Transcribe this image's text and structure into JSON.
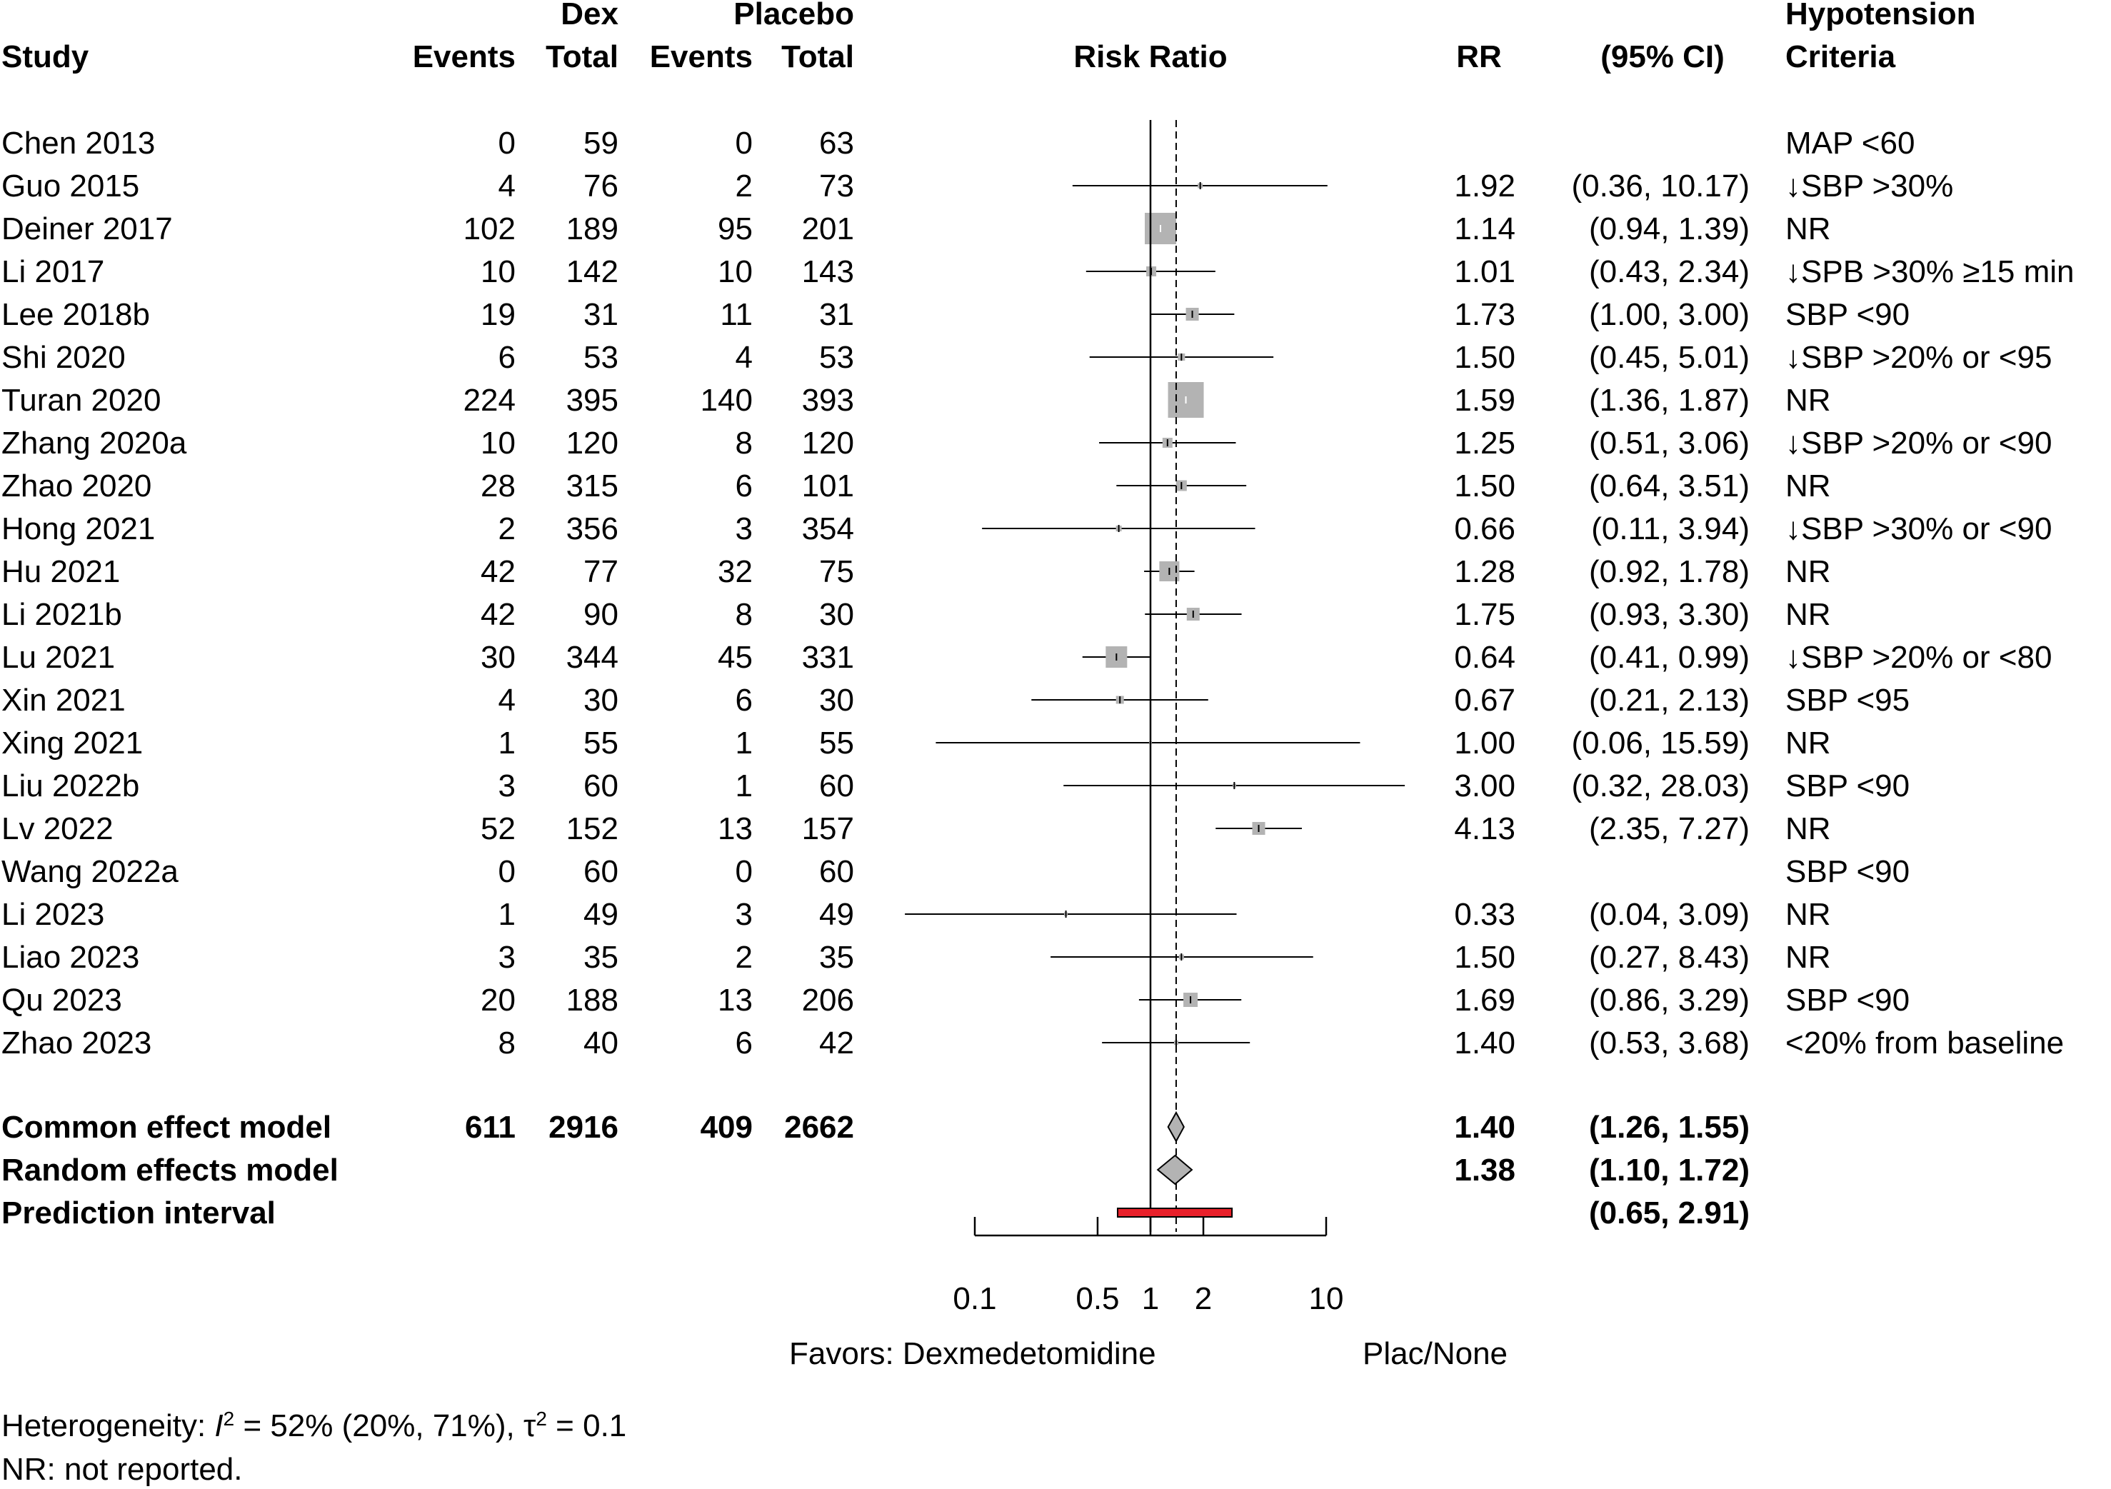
{
  "chart_data": {
    "type": "forest",
    "title": "",
    "scale": "log",
    "xlabel": "Risk Ratio",
    "xlim": [
      0.1,
      10
    ],
    "x_ticks": [
      0.1,
      0.5,
      1,
      2,
      10
    ],
    "x_tick_labels": [
      "0.1",
      "0.5",
      "1",
      "2",
      "10"
    ],
    "reference_line": 1,
    "pooled_line": 1.4,
    "favor_left": "Favors: Dexmedetomidine",
    "favor_right": "Plac/None",
    "headers": {
      "study": "Study",
      "dex": "Dex",
      "placebo": "Placebo",
      "events": "Events",
      "total": "Total",
      "plot": "Risk Ratio",
      "rr": "RR",
      "ci": "(95% CI)",
      "crit_line1": "Hypotension",
      "crit_line2": "Criteria"
    },
    "studies": [
      {
        "name": "Chen 2013",
        "dex_events": "0",
        "dex_total": "59",
        "pla_events": "0",
        "pla_total": "63",
        "rr": null,
        "lo": null,
        "hi": null,
        "rr_text": "",
        "ci_text": "",
        "criteria": "MAP <60",
        "box": 0
      },
      {
        "name": "Guo 2015",
        "dex_events": "4",
        "dex_total": "76",
        "pla_events": "2",
        "pla_total": "73",
        "rr": 1.92,
        "lo": 0.36,
        "hi": 10.17,
        "rr_text": "1.92",
        "ci_text": "(0.36, 10.17)",
        "criteria": "↓SBP >30%",
        "box": 7
      },
      {
        "name": "Deiner 2017",
        "dex_events": "102",
        "dex_total": "189",
        "pla_events": "95",
        "pla_total": "201",
        "rr": 1.14,
        "lo": 0.94,
        "hi": 1.39,
        "rr_text": "1.14",
        "ci_text": "(0.94, 1.39)",
        "criteria": "NR",
        "box": 44
      },
      {
        "name": "Li 2017",
        "dex_events": "10",
        "dex_total": "142",
        "pla_events": "10",
        "pla_total": "143",
        "rr": 1.01,
        "lo": 0.43,
        "hi": 2.34,
        "rr_text": "1.01",
        "ci_text": "(0.43, 2.34)",
        "criteria": "↓SPB >30% ≥15 min",
        "box": 14
      },
      {
        "name": "Lee 2018b",
        "dex_events": "19",
        "dex_total": "31",
        "pla_events": "11",
        "pla_total": "31",
        "rr": 1.73,
        "lo": 1.0,
        "hi": 3.0,
        "rr_text": "1.73",
        "ci_text": "(1.00, 3.00)",
        "criteria": "SBP <90",
        "box": 18
      },
      {
        "name": "Shi 2020",
        "dex_events": "6",
        "dex_total": "53",
        "pla_events": "4",
        "pla_total": "53",
        "rr": 1.5,
        "lo": 0.45,
        "hi": 5.01,
        "rr_text": "1.50",
        "ci_text": "(0.45, 5.01)",
        "criteria": "↓SBP >20% or <95",
        "box": 10
      },
      {
        "name": "Turan 2020",
        "dex_events": "224",
        "dex_total": "395",
        "pla_events": "140",
        "pla_total": "393",
        "rr": 1.59,
        "lo": 1.36,
        "hi": 1.87,
        "rr_text": "1.59",
        "ci_text": "(1.36, 1.87)",
        "criteria": "NR",
        "box": 50
      },
      {
        "name": "Zhang 2020a",
        "dex_events": "10",
        "dex_total": "120",
        "pla_events": "8",
        "pla_total": "120",
        "rr": 1.25,
        "lo": 0.51,
        "hi": 3.06,
        "rr_text": "1.25",
        "ci_text": "(0.51, 3.06)",
        "criteria": "↓SBP >20% or <90",
        "box": 14
      },
      {
        "name": "Zhao 2020",
        "dex_events": "28",
        "dex_total": "315",
        "pla_events": "6",
        "pla_total": "101",
        "rr": 1.5,
        "lo": 0.64,
        "hi": 3.51,
        "rr_text": "1.50",
        "ci_text": "(0.64, 3.51)",
        "criteria": "NR",
        "box": 15
      },
      {
        "name": "Hong 2021",
        "dex_events": "2",
        "dex_total": "356",
        "pla_events": "3",
        "pla_total": "354",
        "rr": 0.66,
        "lo": 0.11,
        "hi": 3.94,
        "rr_text": "0.66",
        "ci_text": "(0.11, 3.94)",
        "criteria": "↓SBP >30% or <90",
        "box": 8
      },
      {
        "name": "Hu 2021",
        "dex_events": "42",
        "dex_total": "77",
        "pla_events": "32",
        "pla_total": "75",
        "rr": 1.28,
        "lo": 0.92,
        "hi": 1.78,
        "rr_text": "1.28",
        "ci_text": "(0.92, 1.78)",
        "criteria": "NR",
        "box": 28
      },
      {
        "name": "Li 2021b",
        "dex_events": "42",
        "dex_total": "90",
        "pla_events": "8",
        "pla_total": "30",
        "rr": 1.75,
        "lo": 0.93,
        "hi": 3.3,
        "rr_text": "1.75",
        "ci_text": "(0.93, 3.30)",
        "criteria": "NR",
        "box": 18
      },
      {
        "name": "Lu 2021",
        "dex_events": "30",
        "dex_total": "344",
        "pla_events": "45",
        "pla_total": "331",
        "rr": 0.64,
        "lo": 0.41,
        "hi": 0.99,
        "rr_text": "0.64",
        "ci_text": "(0.41, 0.99)",
        "criteria": "↓SBP >20% or <80",
        "box": 30
      },
      {
        "name": "Xin 2021",
        "dex_events": "4",
        "dex_total": "30",
        "pla_events": "6",
        "pla_total": "30",
        "rr": 0.67,
        "lo": 0.21,
        "hi": 2.13,
        "rr_text": "0.67",
        "ci_text": "(0.21, 2.13)",
        "criteria": "SBP <95",
        "box": 11
      },
      {
        "name": "Xing 2021",
        "dex_events": "1",
        "dex_total": "55",
        "pla_events": "1",
        "pla_total": "55",
        "rr": 1.0,
        "lo": 0.06,
        "hi": 15.59,
        "rr_text": "1.00",
        "ci_text": "(0.06, 15.59)",
        "criteria": "NR",
        "box": 4
      },
      {
        "name": "Liu 2022b",
        "dex_events": "3",
        "dex_total": "60",
        "pla_events": "1",
        "pla_total": "60",
        "rr": 3.0,
        "lo": 0.32,
        "hi": 28.03,
        "rr_text": "3.00",
        "ci_text": "(0.32, 28.03)",
        "criteria": "SBP <90",
        "box": 5
      },
      {
        "name": "Lv 2022",
        "dex_events": "52",
        "dex_total": "152",
        "pla_events": "13",
        "pla_total": "157",
        "rr": 4.13,
        "lo": 2.35,
        "hi": 7.27,
        "rr_text": "4.13",
        "ci_text": "(2.35, 7.27)",
        "criteria": "NR",
        "box": 18
      },
      {
        "name": "Wang 2022a",
        "dex_events": "0",
        "dex_total": "60",
        "pla_events": "0",
        "pla_total": "60",
        "rr": null,
        "lo": null,
        "hi": null,
        "rr_text": "",
        "ci_text": "",
        "criteria": "SBP <90",
        "box": 0
      },
      {
        "name": "Li 2023",
        "dex_events": "1",
        "dex_total": "49",
        "pla_events": "3",
        "pla_total": "49",
        "rr": 0.33,
        "lo": 0.04,
        "hi": 3.09,
        "rr_text": "0.33",
        "ci_text": "(0.04, 3.09)",
        "criteria": "NR",
        "box": 5
      },
      {
        "name": "Liao 2023",
        "dex_events": "3",
        "dex_total": "35",
        "pla_events": "2",
        "pla_total": "35",
        "rr": 1.5,
        "lo": 0.27,
        "hi": 8.43,
        "rr_text": "1.50",
        "ci_text": "(0.27, 8.43)",
        "criteria": "NR",
        "box": 7
      },
      {
        "name": "Qu 2023",
        "dex_events": "20",
        "dex_total": "188",
        "pla_events": "13",
        "pla_total": "206",
        "rr": 1.69,
        "lo": 0.86,
        "hi": 3.29,
        "rr_text": "1.69",
        "ci_text": "(0.86, 3.29)",
        "criteria": "SBP <90",
        "box": 20
      },
      {
        "name": "Zhao 2023",
        "dex_events": "8",
        "dex_total": "40",
        "pla_events": "6",
        "pla_total": "42",
        "rr": 1.4,
        "lo": 0.53,
        "hi": 3.68,
        "rr_text": "1.40",
        "ci_text": "(0.53, 3.68)",
        "criteria": "<20% from baseline",
        "box": 6
      }
    ],
    "common_effect": {
      "name": "Common effect model",
      "dex_events": "611",
      "dex_total": "2916",
      "pla_events": "409",
      "pla_total": "2662",
      "rr": 1.4,
      "lo": 1.26,
      "hi": 1.55,
      "rr_text": "1.40",
      "ci_text": "(1.26, 1.55)"
    },
    "random_effects": {
      "name": "Random effects model",
      "rr": 1.38,
      "lo": 1.1,
      "hi": 1.72,
      "rr_text": "1.38",
      "ci_text": "(1.10, 1.72)"
    },
    "prediction_interval": {
      "name": "Prediction interval",
      "lo": 0.65,
      "hi": 2.91,
      "ci_text": "(0.65, 2.91)"
    },
    "heterogeneity": {
      "prefix": "Heterogeneity: ",
      "i2_symbol": "I",
      "i2_sup": "2",
      "i2_text": " = 52% (20%, 71%), ",
      "tau2_symbol": "τ",
      "tau2_sup": "2",
      "tau2_text": " = 0.1"
    },
    "footnote": "NR: not reported.",
    "colors": {
      "box": "#b3b3b3",
      "diamond": "#b3b3b3",
      "prediction": "#e8202a",
      "line": "#000000"
    }
  }
}
